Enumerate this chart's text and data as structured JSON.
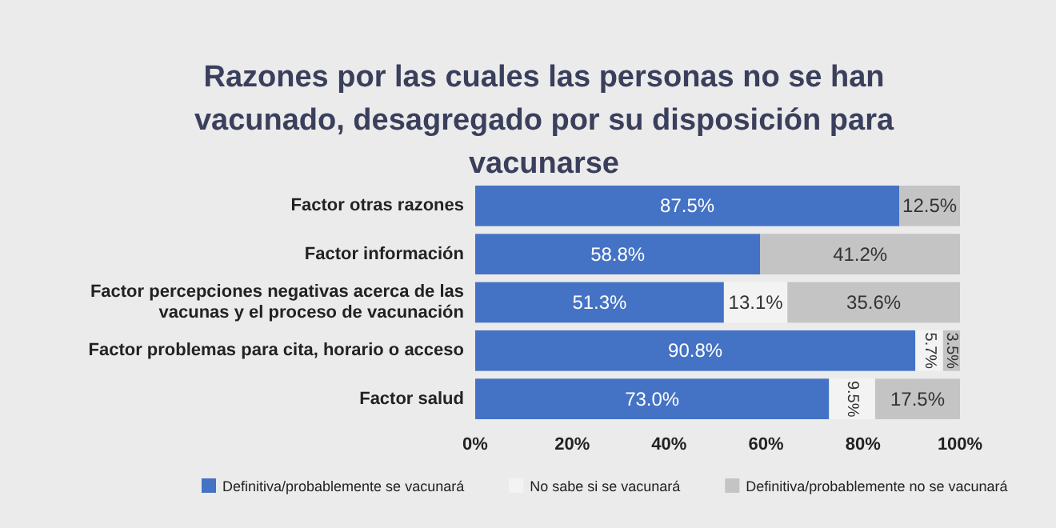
{
  "chart_data": {
    "type": "bar",
    "orientation": "horizontal",
    "stacked": true,
    "title": "Razones por las cuales las personas no se han vacunado, desagregado por su disposición para vacunarse",
    "categories": [
      "Factor otras razones",
      "Factor información",
      "Factor percepciones negativas acerca de las vacunas y el proceso de vacunación",
      "Factor problemas para cita, horario o acceso",
      "Factor salud"
    ],
    "series": [
      {
        "name": "Definitiva/probablemente se vacunará",
        "color": "#4472c4",
        "values": [
          87.5,
          58.8,
          51.3,
          90.8,
          73.0
        ],
        "value_labels": [
          "87.5%",
          "58.8%",
          "51.3%",
          "90.8%",
          "73.0%"
        ]
      },
      {
        "name": "No sabe si se vacunará",
        "color": "#f3f3f3",
        "values": [
          0,
          0,
          13.1,
          5.7,
          9.5
        ],
        "value_labels": [
          null,
          null,
          "13.1%",
          "5.7%",
          "9.5%"
        ]
      },
      {
        "name": "Definitiva/probablemente no se vacunará",
        "color": "#c4c4c4",
        "values": [
          12.5,
          41.2,
          35.6,
          3.5,
          17.5
        ],
        "value_labels": [
          "12.5%",
          "41.2%",
          "35.6%",
          "3.5%",
          "17.5%"
        ]
      }
    ],
    "xlim": [
      0,
      100
    ],
    "xticks": [
      {
        "value": 0,
        "label": "0%"
      },
      {
        "value": 20,
        "label": "20%"
      },
      {
        "value": 40,
        "label": "40%"
      },
      {
        "value": 60,
        "label": "60%"
      },
      {
        "value": 80,
        "label": "80%"
      },
      {
        "value": 100,
        "label": "100%"
      }
    ],
    "legend": "bottom",
    "grid": false
  }
}
